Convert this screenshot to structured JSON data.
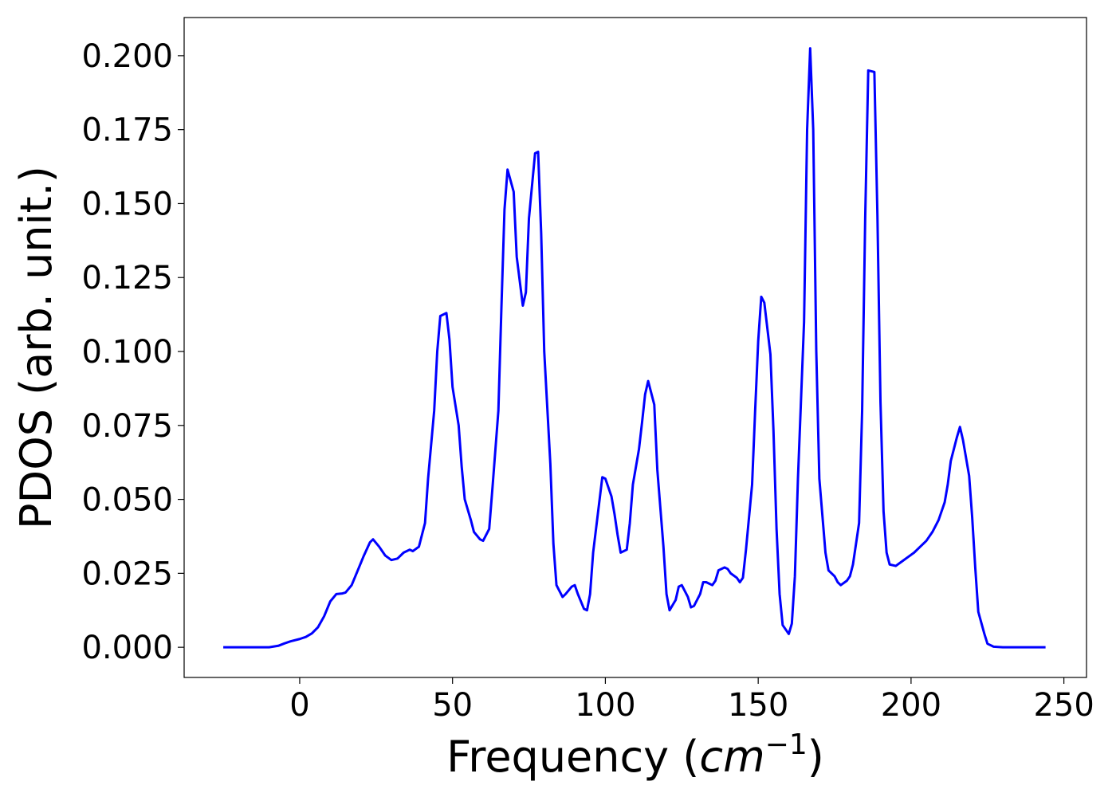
{
  "chart_data": {
    "type": "line",
    "xlabel": [
      "Frequency (",
      "cm",
      "−1",
      ")"
    ],
    "ylabel": "PDOS (arb. unit.)",
    "xlim": [
      -37.8,
      257.4
    ],
    "ylim": [
      -0.0102,
      0.2129
    ],
    "xticks": [
      0,
      50,
      100,
      150,
      200,
      250
    ],
    "yticks": [
      {
        "value": 0,
        "label": "0.000"
      },
      {
        "value": 0.025,
        "label": "0.025"
      },
      {
        "value": 0.05,
        "label": "0.050"
      },
      {
        "value": 0.075,
        "label": "0.075"
      },
      {
        "value": 0.1,
        "label": "0.100"
      },
      {
        "value": 0.125,
        "label": "0.125"
      },
      {
        "value": 0.15,
        "label": "0.150"
      },
      {
        "value": 0.175,
        "label": "0.175"
      },
      {
        "value": 0.2,
        "label": "0.200"
      }
    ],
    "x": [
      -25,
      -10,
      -7,
      -5,
      -3,
      0,
      2,
      4,
      6,
      8,
      10,
      12,
      14,
      15,
      17,
      19,
      21,
      23,
      24,
      26,
      28,
      30,
      32,
      34,
      36,
      37,
      39,
      41,
      42,
      44,
      45,
      46,
      48,
      49,
      50,
      52,
      53,
      54,
      56,
      57,
      59,
      60,
      62,
      63,
      65,
      66,
      67,
      68,
      70,
      71,
      73,
      74,
      75,
      77,
      78,
      79,
      80,
      82,
      83,
      84,
      86,
      87,
      89,
      90,
      91,
      93,
      94,
      95,
      96,
      98,
      99,
      100,
      102,
      103,
      104,
      105,
      107,
      108,
      109,
      111,
      112,
      113,
      114,
      116,
      117,
      119,
      120,
      121,
      123,
      124,
      125,
      127,
      128,
      129,
      131,
      132,
      133,
      135,
      136,
      137,
      139,
      140,
      141,
      143,
      144,
      145,
      146,
      148,
      149,
      150,
      151,
      152,
      154,
      155,
      156,
      157,
      158,
      160,
      161,
      162,
      163,
      165,
      166,
      167,
      168,
      169,
      170,
      172,
      173,
      175,
      176,
      177,
      179,
      180,
      181,
      183,
      184,
      185,
      186,
      188,
      189,
      190,
      191,
      192,
      193,
      195,
      197,
      199,
      201,
      203,
      205,
      207,
      209,
      211,
      212,
      213,
      215,
      216,
      217,
      219,
      220,
      221,
      222,
      224,
      225,
      227,
      230,
      244
    ],
    "series": [
      {
        "name": "PDOS",
        "color": "#0000ff",
        "values": [
          0,
          0,
          0.0005,
          0.0013,
          0.002,
          0.0028,
          0.0035,
          0.0047,
          0.0068,
          0.0105,
          0.0155,
          0.018,
          0.0182,
          0.0185,
          0.021,
          0.026,
          0.031,
          0.0355,
          0.0365,
          0.034,
          0.031,
          0.0295,
          0.03,
          0.032,
          0.033,
          0.0325,
          0.034,
          0.042,
          0.057,
          0.08,
          0.1,
          0.112,
          0.113,
          0.104,
          0.088,
          0.075,
          0.061,
          0.05,
          0.043,
          0.039,
          0.0365,
          0.036,
          0.04,
          0.053,
          0.08,
          0.115,
          0.148,
          0.1615,
          0.154,
          0.132,
          0.1155,
          0.12,
          0.145,
          0.167,
          0.1675,
          0.14,
          0.1,
          0.062,
          0.035,
          0.021,
          0.017,
          0.018,
          0.0205,
          0.021,
          0.018,
          0.013,
          0.0125,
          0.018,
          0.032,
          0.049,
          0.0575,
          0.057,
          0.051,
          0.045,
          0.038,
          0.032,
          0.033,
          0.042,
          0.055,
          0.067,
          0.076,
          0.0855,
          0.09,
          0.082,
          0.06,
          0.034,
          0.018,
          0.0125,
          0.016,
          0.0205,
          0.021,
          0.017,
          0.0135,
          0.014,
          0.018,
          0.022,
          0.022,
          0.021,
          0.0225,
          0.026,
          0.027,
          0.0265,
          0.025,
          0.0235,
          0.022,
          0.0235,
          0.033,
          0.055,
          0.08,
          0.1035,
          0.1185,
          0.1165,
          0.099,
          0.073,
          0.04,
          0.018,
          0.0075,
          0.0045,
          0.008,
          0.024,
          0.057,
          0.11,
          0.175,
          0.2025,
          0.175,
          0.1,
          0.057,
          0.032,
          0.026,
          0.024,
          0.022,
          0.021,
          0.0225,
          0.024,
          0.028,
          0.042,
          0.08,
          0.145,
          0.195,
          0.1945,
          0.146,
          0.083,
          0.046,
          0.032,
          0.028,
          0.0275,
          0.029,
          0.0305,
          0.032,
          0.034,
          0.036,
          0.039,
          0.043,
          0.049,
          0.055,
          0.063,
          0.071,
          0.0745,
          0.07,
          0.058,
          0.044,
          0.027,
          0.012,
          0.0045,
          0.0012,
          0.0002,
          0,
          0
        ]
      }
    ]
  }
}
